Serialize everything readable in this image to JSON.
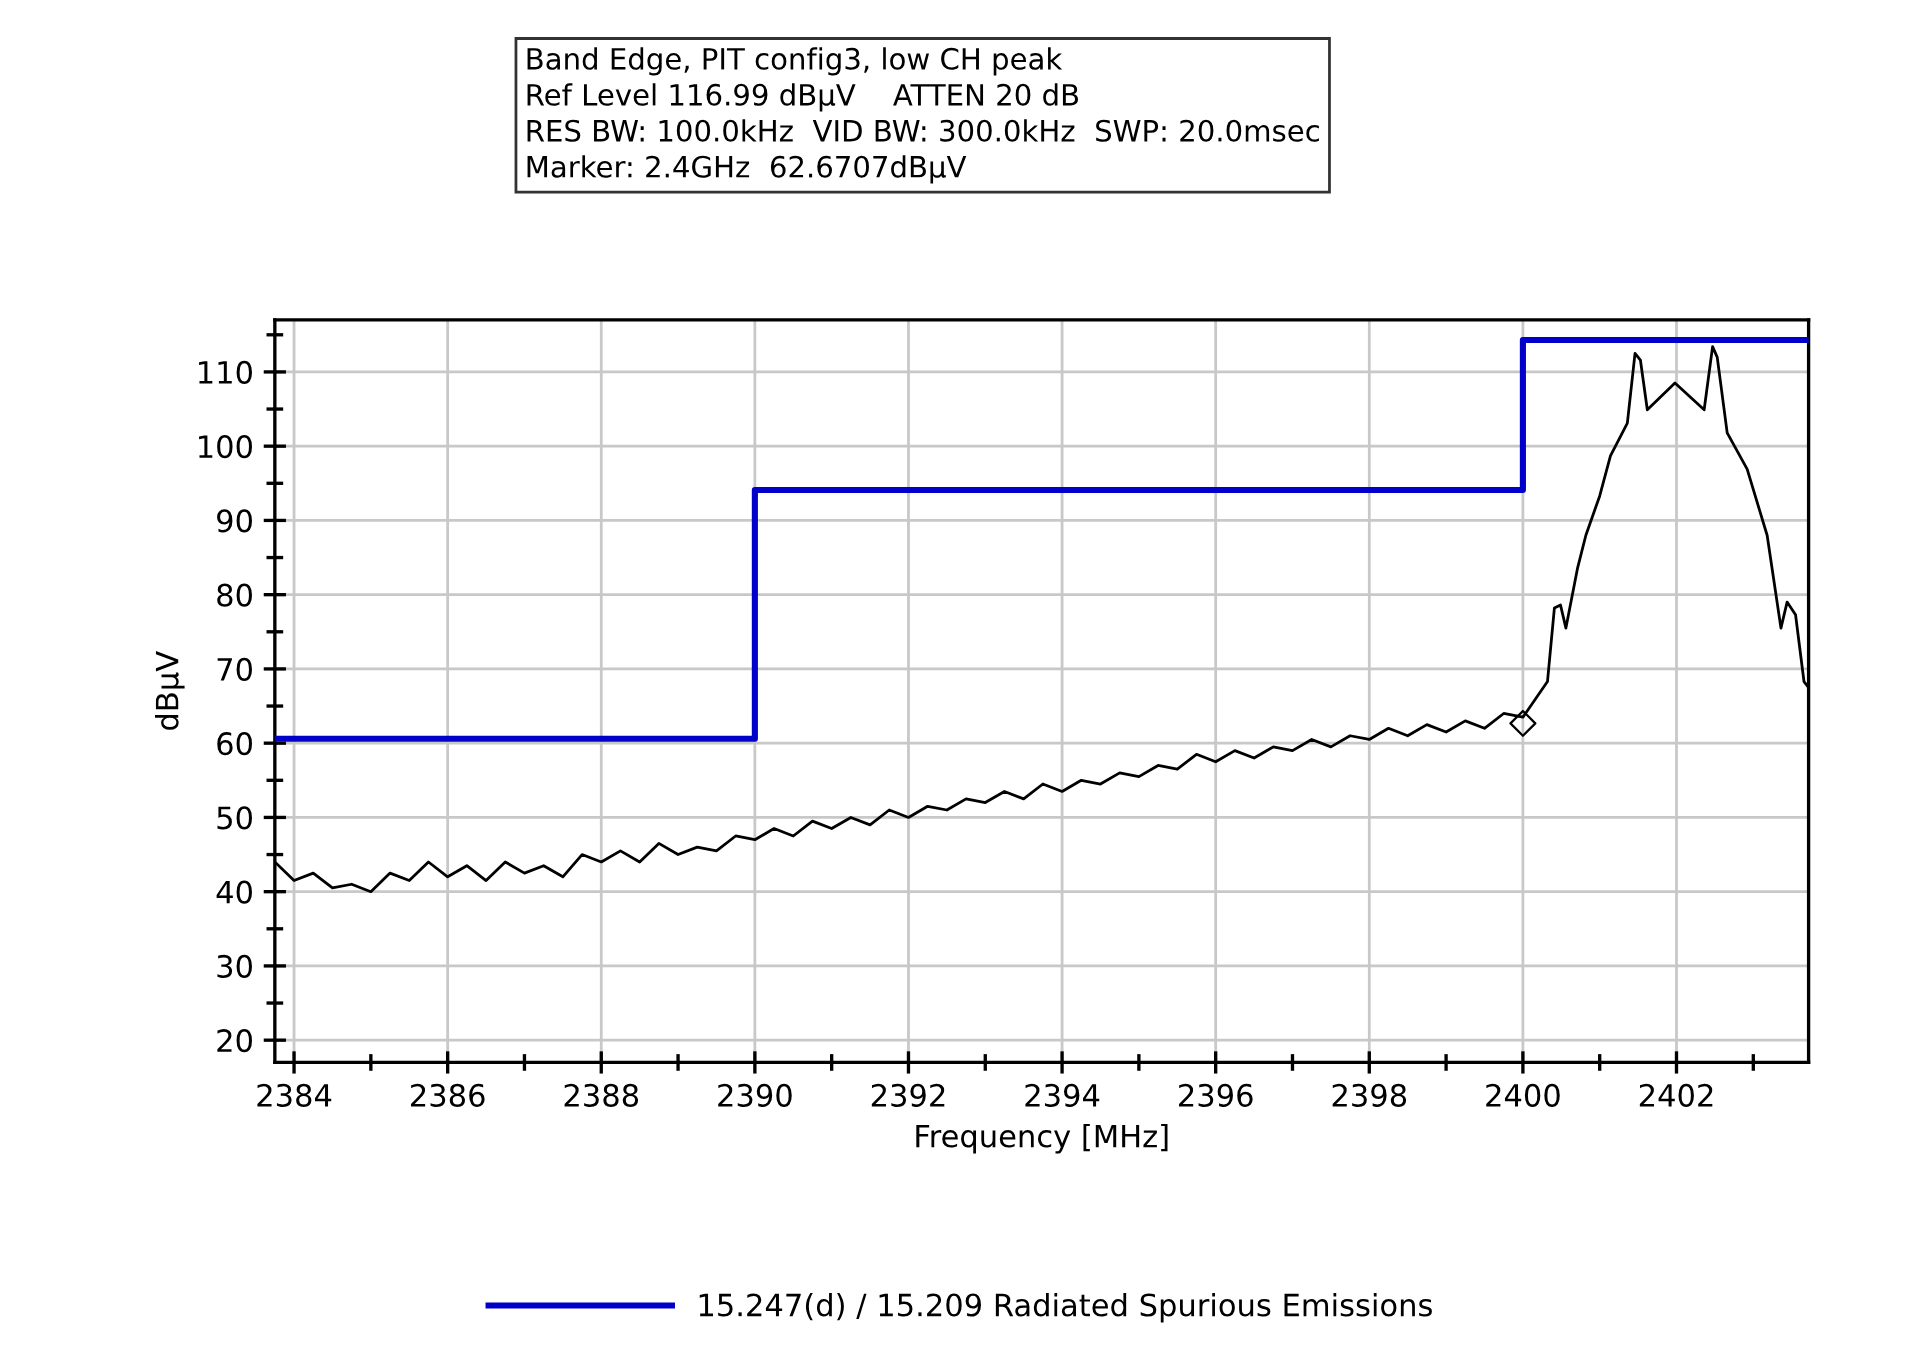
{
  "chart_data": {
    "type": "line",
    "xlabel": "Frequency [MHz]",
    "ylabel": "dBµV",
    "annotations": [
      "Band Edge, PIT config3, low CH peak",
      "Ref Level 116.99 dBµV    ATTEN 20 dB",
      "RES BW: 100.0kHz  VID BW: 300.0kHz  SWP: 20.0msec",
      "Marker: 2.4GHz  62.6707dBµV"
    ],
    "xlim": [
      2383.75,
      2403.72
    ],
    "ylim": [
      17,
      117
    ],
    "xticks": [
      2384,
      {
        "value": 2385,
        "label": null
      },
      2386,
      {
        "value": 2387,
        "label": null
      },
      2388,
      {
        "value": 2389,
        "label": null
      },
      2390,
      {
        "value": 2391,
        "label": null
      },
      2392,
      {
        "value": 2393,
        "label": null
      },
      2394,
      {
        "value": 2395,
        "label": null
      },
      2396,
      {
        "value": 2397,
        "label": null
      },
      2398,
      {
        "value": 2399,
        "label": null
      },
      2400,
      {
        "value": 2401,
        "label": null
      },
      2402,
      {
        "value": 2403,
        "label": null
      }
    ],
    "yticks": [
      20,
      {
        "value": 25,
        "label": null
      },
      30,
      {
        "value": 35,
        "label": null
      },
      40,
      {
        "value": 45,
        "label": null
      },
      50,
      {
        "value": 55,
        "label": null
      },
      60,
      {
        "value": 65,
        "label": null
      },
      70,
      {
        "value": 75,
        "label": null
      },
      80,
      {
        "value": 85,
        "label": null
      },
      90,
      {
        "value": 95,
        "label": null
      },
      100,
      {
        "value": 105,
        "label": null
      },
      110,
      {
        "value": 115,
        "label": null
      }
    ],
    "grid": true,
    "legend": "bottom",
    "series": [
      {
        "color": "#000000",
        "x": [
          2383.75,
          2384,
          2384.25,
          2384.5,
          2384.75,
          2385,
          2385.25,
          2385.5,
          2385.75,
          2386,
          2386.25,
          2386.5,
          2386.75,
          2387,
          2387.25,
          2387.5,
          2387.75,
          2388,
          2388.25,
          2388.5,
          2388.75,
          2389,
          2389.25,
          2389.5,
          2389.75,
          2390,
          2390.25,
          2390.5,
          2390.75,
          2391,
          2391.25,
          2391.5,
          2391.75,
          2392,
          2392.25,
          2392.5,
          2392.75,
          2393,
          2393.25,
          2393.5,
          2393.75,
          2394,
          2394.25,
          2394.5,
          2394.75,
          2395,
          2395.25,
          2395.5,
          2395.75,
          2396,
          2396.25,
          2396.5,
          2396.75,
          2397,
          2397.25,
          2397.5,
          2397.75,
          2398,
          2398.25,
          2398.5,
          2398.75,
          2399,
          2399.25,
          2399.5,
          2399.75,
          2400,
          2400.32,
          2400.41,
          2400.49,
          2400.56,
          2400.71,
          2400.82,
          2401.0,
          2401.14,
          2401.36,
          2401.46,
          2401.53,
          2401.62,
          2401.98,
          2402.36,
          2402.47,
          2402.53,
          2402.66,
          2402.92,
          2403.18,
          2403.36,
          2403.44,
          2403.55,
          2403.66,
          2403.72
        ],
        "values": [
          44,
          41.5,
          42.5,
          40.5,
          41,
          40,
          42.5,
          41.5,
          44,
          42,
          43.5,
          41.5,
          44,
          42.5,
          43.5,
          42,
          45,
          44,
          45.5,
          44,
          46.5,
          45,
          46,
          45.5,
          47.5,
          47,
          48.5,
          47.5,
          49.5,
          48.5,
          50,
          49,
          51,
          50,
          51.5,
          51,
          52.5,
          52,
          53.5,
          52.5,
          54.5,
          53.5,
          55,
          54.5,
          56,
          55.5,
          57,
          56.5,
          58.5,
          57.5,
          59,
          58,
          59.5,
          59,
          60.5,
          59.5,
          61,
          60.5,
          62,
          61,
          62.5,
          61.5,
          63,
          62,
          64,
          63.5,
          68.3,
          78.2,
          78.6,
          75.5,
          83.5,
          88.0,
          93.3,
          98.7,
          103.1,
          112.5,
          111.6,
          104.9,
          108.5,
          104.9,
          113.4,
          112.0,
          101.8,
          96.9,
          88.0,
          75.5,
          79.0,
          77.3,
          68.3,
          67.5
        ]
      },
      {
        "name": "15.247(d) / 15.209 Radiated Spurious Emissions",
        "color": "#0000c8",
        "x": [
          2383.75,
          2390,
          2390,
          2400,
          2400,
          2403.72
        ],
        "values": [
          60.6,
          60.6,
          94.1,
          94.1,
          114.3,
          114.3
        ]
      },
      {
        "type": "scatter",
        "marker": "diamond",
        "color": "#000000",
        "x": [
          2400
        ],
        "values": [
          62.67
        ]
      }
    ]
  }
}
